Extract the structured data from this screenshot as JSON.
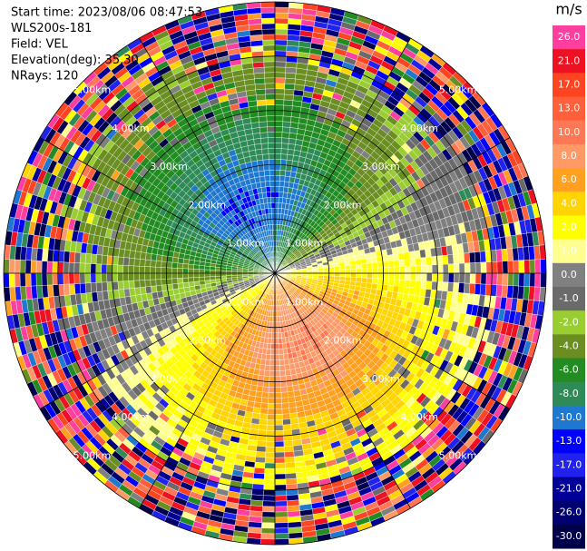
{
  "header": {
    "lines": [
      "Start time: 2023/08/06 08:47:53",
      "WLS200s-181",
      "Field: VEL",
      "Elevation(deg): 35.30",
      "NRays: 120"
    ]
  },
  "range_rings": [
    {
      "value": 1,
      "label": "1.00km"
    },
    {
      "value": 2,
      "label": "2.00km"
    },
    {
      "value": 3,
      "label": "3.00km"
    },
    {
      "value": 4,
      "label": "4.00km"
    },
    {
      "value": 5,
      "label": "5.00km"
    }
  ],
  "colorbar": {
    "title": "m/s",
    "ticks": [
      {
        "value": 26,
        "label": "26.0"
      },
      {
        "value": 21,
        "label": "21.0"
      },
      {
        "value": 17,
        "label": "17.0"
      },
      {
        "value": 13,
        "label": "13.0"
      },
      {
        "value": 10,
        "label": "10.0"
      },
      {
        "value": 8,
        "label": "8.0"
      },
      {
        "value": 6,
        "label": "6.0"
      },
      {
        "value": 4,
        "label": "4.0"
      },
      {
        "value": 2,
        "label": "2.0"
      },
      {
        "value": 1,
        "label": "1.0"
      },
      {
        "value": 0,
        "label": "0.0"
      },
      {
        "value": -1,
        "label": "-1.0"
      },
      {
        "value": -2,
        "label": "-2.0"
      },
      {
        "value": -4,
        "label": "-4.0"
      },
      {
        "value": -6,
        "label": "-6.0"
      },
      {
        "value": -8,
        "label": "-8.0"
      },
      {
        "value": -10,
        "label": "-10.0"
      },
      {
        "value": -13,
        "label": "-13.0"
      },
      {
        "value": -17,
        "label": "-17.0"
      },
      {
        "value": -21,
        "label": "-21.0"
      },
      {
        "value": -26,
        "label": "-26.0"
      },
      {
        "value": -30,
        "label": "-30.0"
      }
    ],
    "colors": [
      "#ff3fa0",
      "#ee1122",
      "#ff4422",
      "#ff5f3a",
      "#ff7755",
      "#ff9966",
      "#ffa020",
      "#ffd400",
      "#ffff00",
      "#ffff90",
      "#808080",
      "#6a6a6a",
      "#9acd32",
      "#6b8e23",
      "#228b22",
      "#2e8b57",
      "#1e78d0",
      "#0000ff",
      "#2222ee",
      "#000099",
      "#000070",
      "#00004a"
    ]
  }
}
